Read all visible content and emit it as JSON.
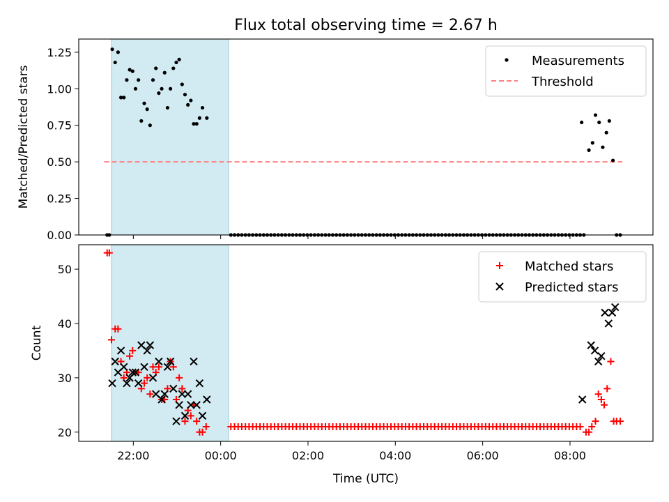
{
  "title": "Flux total observing time = 2.67 h",
  "colors": {
    "measurement": "#000000",
    "threshold": "#ff7f7f",
    "matched": "#ff0000",
    "predicted": "#000000",
    "shade": "#add8e6"
  },
  "chart_data": [
    {
      "type": "scatter",
      "panel": "top",
      "ylabel": "Matched/Predicted stars",
      "ylim": [
        0,
        1.34
      ],
      "yticks": [
        0,
        0.25,
        0.5,
        0.75,
        1.0,
        1.25
      ],
      "yticklabels": [
        "0.00",
        "0.25",
        "0.50",
        "0.75",
        "1.00",
        "1.25"
      ],
      "xlim": [
        20.75,
        9.9
      ],
      "legend_position": "top-right",
      "legend": [
        "Measurements",
        "Threshold"
      ],
      "shaded_span": [
        "21:30",
        "00:11"
      ],
      "threshold": {
        "value": 0.5,
        "x": [
          "21:20",
          "09:12"
        ]
      },
      "series": [
        {
          "name": "Measurements",
          "points": [
            [
              "21:24",
              0.0
            ],
            [
              "21:27",
              0.0
            ],
            [
              "21:31",
              1.27
            ],
            [
              "21:35",
              1.18
            ],
            [
              "21:39",
              1.25
            ],
            [
              "21:43",
              0.94
            ],
            [
              "21:47",
              0.94
            ],
            [
              "21:51",
              1.06
            ],
            [
              "21:55",
              1.13
            ],
            [
              "21:59",
              1.12
            ],
            [
              "22:03",
              1.0
            ],
            [
              "22:07",
              1.06
            ],
            [
              "22:11",
              0.78
            ],
            [
              "22:15",
              0.9
            ],
            [
              "22:19",
              0.86
            ],
            [
              "22:23",
              0.75
            ],
            [
              "22:27",
              1.06
            ],
            [
              "22:31",
              1.14
            ],
            [
              "22:35",
              0.97
            ],
            [
              "22:39",
              1.0
            ],
            [
              "22:43",
              1.11
            ],
            [
              "22:47",
              0.87
            ],
            [
              "22:51",
              1.0
            ],
            [
              "22:55",
              1.14
            ],
            [
              "22:59",
              1.18
            ],
            [
              "23:03",
              1.2
            ],
            [
              "23:07",
              1.03
            ],
            [
              "23:11",
              0.96
            ],
            [
              "23:15",
              0.89
            ],
            [
              "23:19",
              0.92
            ],
            [
              "23:23",
              0.76
            ],
            [
              "23:27",
              0.76
            ],
            [
              "23:31",
              0.8
            ],
            [
              "23:35",
              0.87
            ],
            [
              "23:41",
              0.8
            ],
            [
              "08:16",
              0.77
            ],
            [
              "08:26",
              0.58
            ],
            [
              "08:31",
              0.63
            ],
            [
              "08:35",
              0.82
            ],
            [
              "08:40",
              0.77
            ],
            [
              "08:45",
              0.6
            ],
            [
              "08:50",
              0.7
            ],
            [
              "08:54",
              0.78
            ],
            [
              "08:59",
              0.51
            ],
            [
              "09:04",
              0.0
            ],
            [
              "09:09",
              0.0
            ]
          ],
          "zero_run": {
            "from": "00:14",
            "to": "08:20",
            "step_minutes": 5,
            "value": 0.0
          }
        }
      ]
    },
    {
      "type": "scatter",
      "panel": "bottom",
      "ylabel": "Count",
      "xlabel": "Time (UTC)",
      "ylim": [
        18.3,
        54.5
      ],
      "yticks": [
        20,
        30,
        40,
        50
      ],
      "xlim": [
        20.75,
        9.9
      ],
      "xticks": [
        "22:00",
        "00:00",
        "02:00",
        "04:00",
        "06:00",
        "08:00"
      ],
      "legend_position": "top-right",
      "legend": [
        "Matched stars",
        "Predicted stars"
      ],
      "shaded_span": [
        "21:30",
        "00:11"
      ],
      "series": [
        {
          "name": "Matched stars",
          "points": [
            [
              "21:24",
              53
            ],
            [
              "21:27",
              53
            ],
            [
              "21:30",
              37
            ],
            [
              "21:35",
              39
            ],
            [
              "21:39",
              39
            ],
            [
              "21:43",
              33
            ],
            [
              "21:47",
              30
            ],
            [
              "21:51",
              31
            ],
            [
              "21:55",
              34
            ],
            [
              "21:59",
              35
            ],
            [
              "22:03",
              31
            ],
            [
              "22:07",
              31
            ],
            [
              "22:11",
              28
            ],
            [
              "22:15",
              29
            ],
            [
              "22:19",
              30
            ],
            [
              "22:23",
              27
            ],
            [
              "22:27",
              32
            ],
            [
              "22:31",
              31
            ],
            [
              "22:35",
              32
            ],
            [
              "22:39",
              26
            ],
            [
              "22:43",
              26
            ],
            [
              "22:47",
              28
            ],
            [
              "22:51",
              33
            ],
            [
              "22:55",
              32
            ],
            [
              "22:59",
              26
            ],
            [
              "23:03",
              30
            ],
            [
              "23:07",
              28
            ],
            [
              "23:11",
              22
            ],
            [
              "23:15",
              24
            ],
            [
              "23:19",
              23
            ],
            [
              "23:23",
              25
            ],
            [
              "23:27",
              22
            ],
            [
              "23:31",
              20
            ],
            [
              "23:35",
              20
            ],
            [
              "23:40",
              21
            ],
            [
              "08:22",
              20
            ],
            [
              "08:26",
              20
            ],
            [
              "08:30",
              21
            ],
            [
              "08:35",
              22
            ],
            [
              "08:39",
              27
            ],
            [
              "08:43",
              26
            ],
            [
              "08:47",
              25
            ],
            [
              "08:51",
              28
            ],
            [
              "08:56",
              33
            ],
            [
              "09:00",
              22
            ],
            [
              "09:04",
              22
            ],
            [
              "09:09",
              22
            ]
          ],
          "constant_run": {
            "from": "00:14",
            "to": "08:18",
            "step_minutes": 5,
            "value": 21
          }
        },
        {
          "name": "Predicted stars",
          "points": [
            [
              "21:31",
              29
            ],
            [
              "21:35",
              33
            ],
            [
              "21:39",
              31
            ],
            [
              "21:43",
              35
            ],
            [
              "21:47",
              32
            ],
            [
              "21:51",
              29
            ],
            [
              "21:55",
              30
            ],
            [
              "21:59",
              31
            ],
            [
              "22:03",
              31
            ],
            [
              "22:07",
              29
            ],
            [
              "22:11",
              36
            ],
            [
              "22:15",
              32
            ],
            [
              "22:19",
              35
            ],
            [
              "22:23",
              36
            ],
            [
              "22:27",
              30
            ],
            [
              "22:31",
              27
            ],
            [
              "22:35",
              33
            ],
            [
              "22:39",
              26
            ],
            [
              "22:43",
              27
            ],
            [
              "22:47",
              32
            ],
            [
              "22:51",
              33
            ],
            [
              "22:55",
              28
            ],
            [
              "22:59",
              22
            ],
            [
              "23:03",
              25
            ],
            [
              "23:07",
              27
            ],
            [
              "23:11",
              23
            ],
            [
              "23:15",
              27
            ],
            [
              "23:19",
              25
            ],
            [
              "23:23",
              33
            ],
            [
              "23:27",
              25
            ],
            [
              "23:31",
              29
            ],
            [
              "23:35",
              23
            ],
            [
              "23:41",
              26
            ],
            [
              "08:17",
              26
            ],
            [
              "08:29",
              36
            ],
            [
              "08:34",
              35
            ],
            [
              "08:39",
              33
            ],
            [
              "08:43",
              34
            ],
            [
              "08:48",
              42
            ],
            [
              "08:53",
              40
            ],
            [
              "08:58",
              42
            ],
            [
              "09:02",
              43
            ]
          ]
        }
      ]
    }
  ]
}
